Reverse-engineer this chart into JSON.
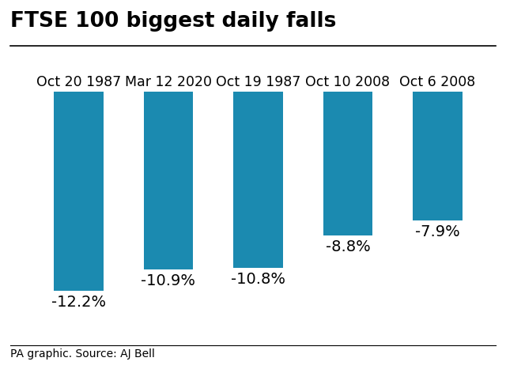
{
  "title": "FTSE 100 biggest daily falls",
  "categories": [
    "Oct 20 1987",
    "Mar 12 2020",
    "Oct 19 1987",
    "Oct 10 2008",
    "Oct 6 2008"
  ],
  "values": [
    -12.2,
    -10.9,
    -10.8,
    -8.8,
    -7.9
  ],
  "bar_color": "#1b8ab0",
  "background_color": "#ffffff",
  "title_fontsize": 19,
  "label_fontsize": 12.5,
  "value_fontsize": 14,
  "footer": "PA graphic. Source: AJ Bell",
  "footer_fontsize": 10,
  "ylim_min": -14.5,
  "ylim_max": 0,
  "bar_width": 0.55
}
